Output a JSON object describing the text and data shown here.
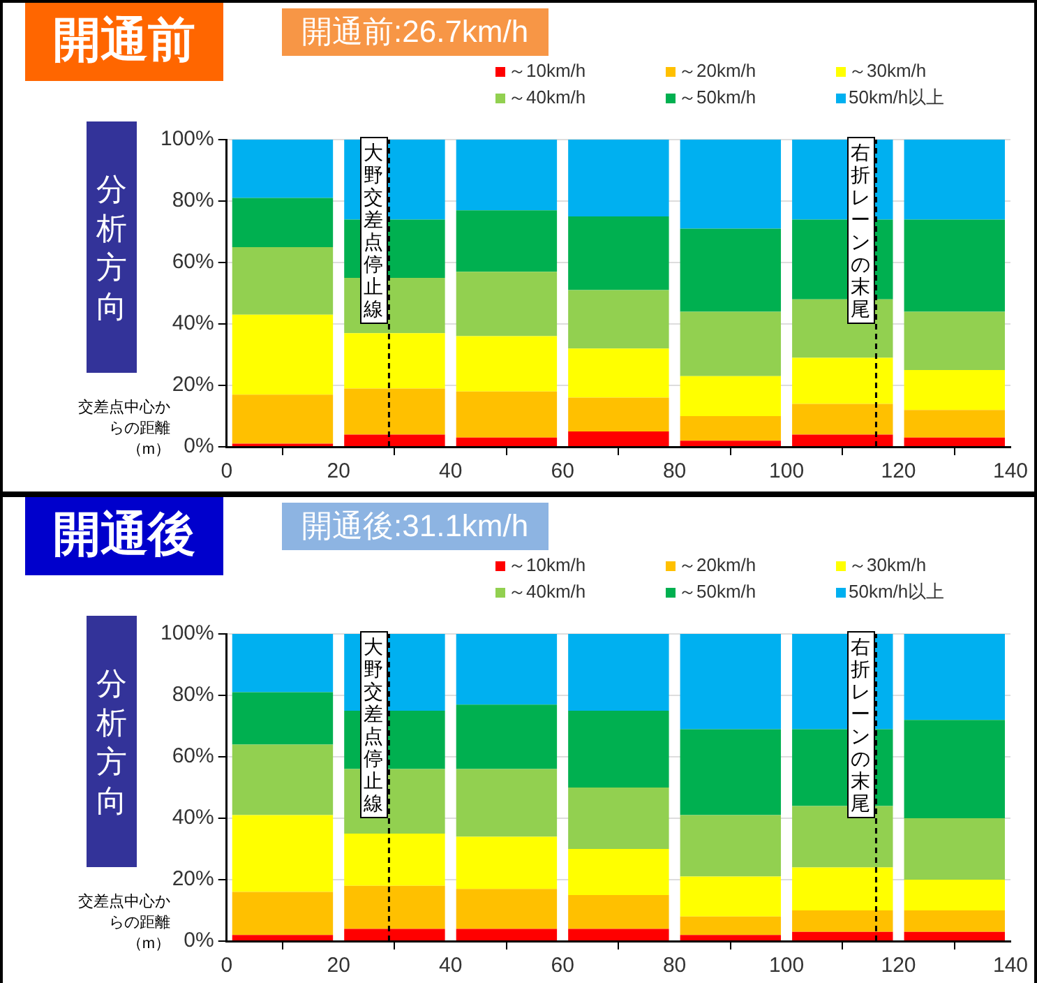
{
  "chart_data": [
    {
      "type": "bar",
      "title": "開通前",
      "subtitle": "開通前:26.7km/h",
      "ylabel": "分析方向",
      "xlabel": "交差点中心からの距離（m）",
      "x": [
        10,
        30,
        50,
        70,
        90,
        110,
        130
      ],
      "xlim": [
        0,
        140
      ],
      "xticks": [
        0,
        20,
        40,
        60,
        80,
        100,
        120,
        140
      ],
      "ylim": [
        0,
        100
      ],
      "yticks": [
        {
          "value": 0,
          "label": "0%"
        },
        {
          "value": 20,
          "label": "20%"
        },
        {
          "value": 40,
          "label": "40%"
        },
        {
          "value": 60,
          "label": "60%"
        },
        {
          "value": 80,
          "label": "80%"
        },
        {
          "value": 100,
          "label": "100%"
        }
      ],
      "stacked": true,
      "grid": "y",
      "legend": "top right",
      "series": [
        {
          "name": "～10km/h",
          "color": "#ff0000",
          "values": [
            1,
            4,
            3,
            5,
            2,
            4,
            3
          ]
        },
        {
          "name": "～20km/h",
          "color": "#ffc000",
          "values": [
            16,
            15,
            15,
            11,
            8,
            10,
            9
          ]
        },
        {
          "name": "～30km/h",
          "color": "#ffff00",
          "values": [
            26,
            18,
            18,
            16,
            13,
            15,
            13
          ]
        },
        {
          "name": "～40km/h",
          "color": "#92d050",
          "values": [
            22,
            18,
            21,
            19,
            21,
            19,
            19
          ]
        },
        {
          "name": "～50km/h",
          "color": "#00b050",
          "values": [
            16,
            19,
            20,
            24,
            27,
            26,
            30
          ]
        },
        {
          "name": "50km/h以上",
          "color": "#00b0f0",
          "values": [
            19,
            26,
            23,
            25,
            29,
            26,
            26
          ]
        }
      ],
      "ref_lines": [
        {
          "axis": "x",
          "value": 29,
          "label": "大野交差点停止線",
          "line_style": "dashed",
          "color": "#000000"
        },
        {
          "axis": "x",
          "value": 116,
          "label": "右折レーンの末尾",
          "line_style": "dashed",
          "color": "#000000"
        }
      ]
    },
    {
      "type": "bar",
      "title": "開通後",
      "subtitle": "開通後:31.1km/h",
      "ylabel": "分析方向",
      "xlabel": "交差点中心からの距離（m）",
      "x": [
        10,
        30,
        50,
        70,
        90,
        110,
        130
      ],
      "xlim": [
        0,
        140
      ],
      "xticks": [
        0,
        20,
        40,
        60,
        80,
        100,
        120,
        140
      ],
      "ylim": [
        0,
        100
      ],
      "yticks": [
        {
          "value": 0,
          "label": "0%"
        },
        {
          "value": 20,
          "label": "20%"
        },
        {
          "value": 40,
          "label": "40%"
        },
        {
          "value": 60,
          "label": "60%"
        },
        {
          "value": 80,
          "label": "80%"
        },
        {
          "value": 100,
          "label": "100%"
        }
      ],
      "stacked": true,
      "grid": "y",
      "legend": "top right",
      "series": [
        {
          "name": "～10km/h",
          "color": "#ff0000",
          "values": [
            2,
            4,
            4,
            4,
            2,
            3,
            3
          ]
        },
        {
          "name": "～20km/h",
          "color": "#ffc000",
          "values": [
            14,
            14,
            13,
            11,
            6,
            7,
            7
          ]
        },
        {
          "name": "～30km/h",
          "color": "#ffff00",
          "values": [
            25,
            17,
            17,
            15,
            13,
            14,
            10
          ]
        },
        {
          "name": "～40km/h",
          "color": "#92d050",
          "values": [
            23,
            21,
            22,
            20,
            20,
            20,
            20
          ]
        },
        {
          "name": "～50km/h",
          "color": "#00b050",
          "values": [
            17,
            19,
            21,
            25,
            28,
            25,
            32
          ]
        },
        {
          "name": "50km/h以上",
          "color": "#00b0f0",
          "values": [
            19,
            25,
            23,
            25,
            31,
            31,
            28
          ]
        }
      ],
      "ref_lines": [
        {
          "axis": "x",
          "value": 29,
          "label": "大野交差点停止線",
          "line_style": "dashed",
          "color": "#000000"
        },
        {
          "axis": "x",
          "value": 116,
          "label": "右折レーンの末尾",
          "line_style": "dashed",
          "color": "#000000"
        }
      ]
    }
  ]
}
